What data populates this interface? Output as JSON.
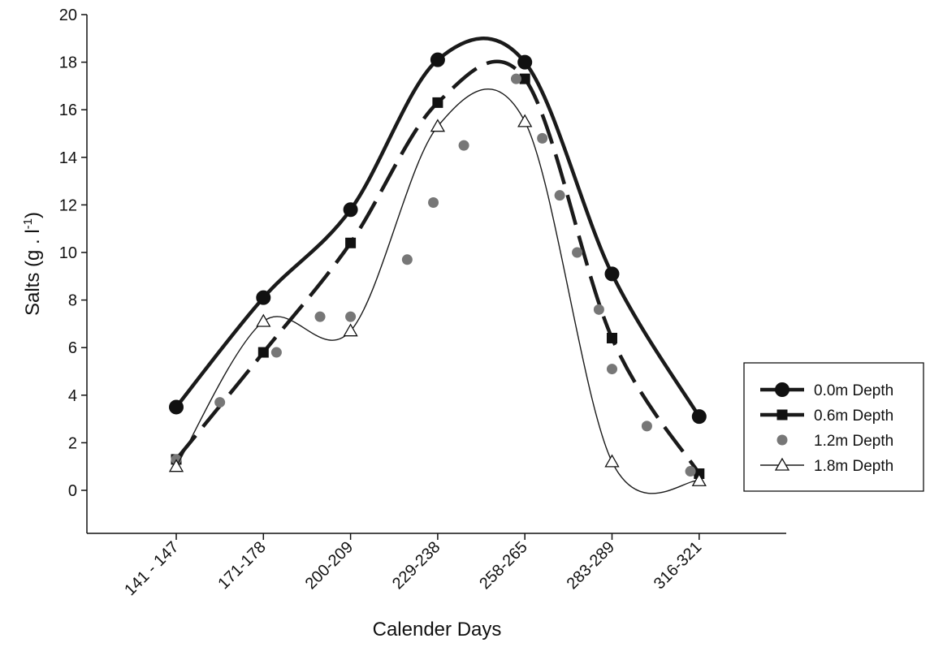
{
  "chart_data": {
    "type": "line",
    "xlabel": "Calender Days",
    "ylabel_main": "Salts (g . l",
    "ylabel_sup": "-1",
    "ylabel_close": ")",
    "categories": [
      "141 - 147",
      "171-178",
      "200-209",
      "229-238",
      "258-265",
      "283-289",
      "316-321"
    ],
    "ylim": [
      -2,
      20
    ],
    "yticks": [
      0,
      2,
      4,
      6,
      8,
      10,
      12,
      14,
      16,
      18,
      20
    ],
    "grid": false,
    "legend_position": "right",
    "series": [
      {
        "name": "0.0m Depth",
        "marker": "circle",
        "line": "thick-solid",
        "color": "#1a1a1a",
        "values": [
          3.5,
          8.1,
          11.8,
          18.1,
          18.0,
          9.1,
          3.1
        ]
      },
      {
        "name": "0.6m Depth",
        "marker": "square",
        "line": "thick-dashed",
        "color": "#1a1a1a",
        "values": [
          1.3,
          5.8,
          10.4,
          16.3,
          17.3,
          6.4,
          0.7
        ]
      },
      {
        "name": "1.2m Depth",
        "marker": "dot",
        "line": "none",
        "color": "#777777",
        "x": [
          0,
          0.5,
          1.15,
          1.65,
          2.0,
          2.65,
          2.95,
          3.3,
          3.9,
          4.2,
          4.4,
          4.6,
          4.85,
          5.0,
          5.4,
          5.9
        ],
        "values": [
          1.3,
          3.7,
          5.8,
          7.3,
          7.3,
          9.7,
          12.1,
          14.5,
          17.3,
          14.8,
          12.4,
          10.0,
          7.6,
          5.1,
          2.7,
          0.8
        ]
      },
      {
        "name": "1.8m Depth",
        "marker": "triangle",
        "line": "thin-solid",
        "color": "#1a1a1a",
        "values": [
          1.0,
          7.1,
          6.7,
          15.3,
          15.5,
          1.2,
          0.4
        ]
      }
    ]
  }
}
